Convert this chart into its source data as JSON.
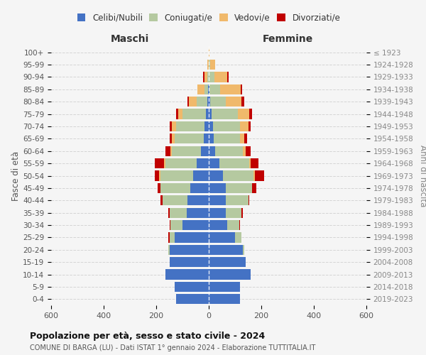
{
  "age_groups": [
    "0-4",
    "5-9",
    "10-14",
    "15-19",
    "20-24",
    "25-29",
    "30-34",
    "35-39",
    "40-44",
    "45-49",
    "50-54",
    "55-59",
    "60-64",
    "65-69",
    "70-74",
    "75-79",
    "80-84",
    "85-89",
    "90-94",
    "95-99",
    "100+"
  ],
  "birth_years": [
    "2019-2023",
    "2014-2018",
    "2009-2013",
    "2004-2008",
    "1999-2003",
    "1994-1998",
    "1989-1993",
    "1984-1988",
    "1979-1983",
    "1974-1978",
    "1969-1973",
    "1964-1968",
    "1959-1963",
    "1954-1958",
    "1949-1953",
    "1944-1948",
    "1939-1943",
    "1934-1938",
    "1929-1933",
    "1924-1928",
    "≤ 1923"
  ],
  "colors": {
    "celibi": "#4472c4",
    "coniugati": "#b5c9a0",
    "vedovi": "#f0b96b",
    "divorziati": "#c00000"
  },
  "maschi": {
    "celibi": [
      125,
      130,
      165,
      150,
      150,
      130,
      100,
      85,
      80,
      70,
      60,
      45,
      30,
      20,
      15,
      10,
      5,
      2,
      1,
      0,
      0
    ],
    "coniugati": [
      0,
      0,
      0,
      0,
      5,
      20,
      45,
      65,
      95,
      115,
      125,
      120,
      110,
      110,
      110,
      90,
      40,
      15,
      5,
      1,
      0
    ],
    "vedovi": [
      0,
      0,
      0,
      0,
      0,
      0,
      0,
      0,
      0,
      0,
      5,
      5,
      5,
      10,
      15,
      15,
      30,
      25,
      10,
      5,
      0
    ],
    "divorziati": [
      0,
      0,
      0,
      0,
      0,
      5,
      5,
      5,
      10,
      10,
      15,
      35,
      20,
      10,
      10,
      10,
      5,
      0,
      5,
      0,
      0
    ]
  },
  "femmine": {
    "celibi": [
      120,
      120,
      160,
      140,
      130,
      100,
      70,
      65,
      65,
      65,
      55,
      40,
      25,
      20,
      15,
      10,
      5,
      2,
      1,
      0,
      0
    ],
    "coniugati": [
      0,
      0,
      0,
      0,
      5,
      25,
      45,
      60,
      85,
      100,
      115,
      115,
      105,
      100,
      105,
      100,
      60,
      40,
      20,
      5,
      0
    ],
    "vedovi": [
      0,
      0,
      0,
      0,
      0,
      0,
      0,
      0,
      0,
      0,
      5,
      5,
      10,
      15,
      30,
      45,
      60,
      80,
      50,
      20,
      2
    ],
    "divorziati": [
      0,
      0,
      0,
      0,
      0,
      0,
      5,
      5,
      5,
      15,
      35,
      30,
      20,
      10,
      10,
      10,
      10,
      5,
      5,
      0,
      0
    ]
  },
  "xlim": 600,
  "title_main": "Popolazione per età, sesso e stato civile - 2024",
  "title_sub": "COMUNE DI BARGA (LU) - Dati ISTAT 1° gennaio 2024 - Elaborazione TUTTITALIA.IT",
  "ylabel_left": "Fasce di età",
  "ylabel_right": "Anni di nascita",
  "xlabel_left": "Maschi",
  "xlabel_right": "Femmine",
  "bg_color": "#f5f5f5",
  "grid_color": "#cccccc"
}
